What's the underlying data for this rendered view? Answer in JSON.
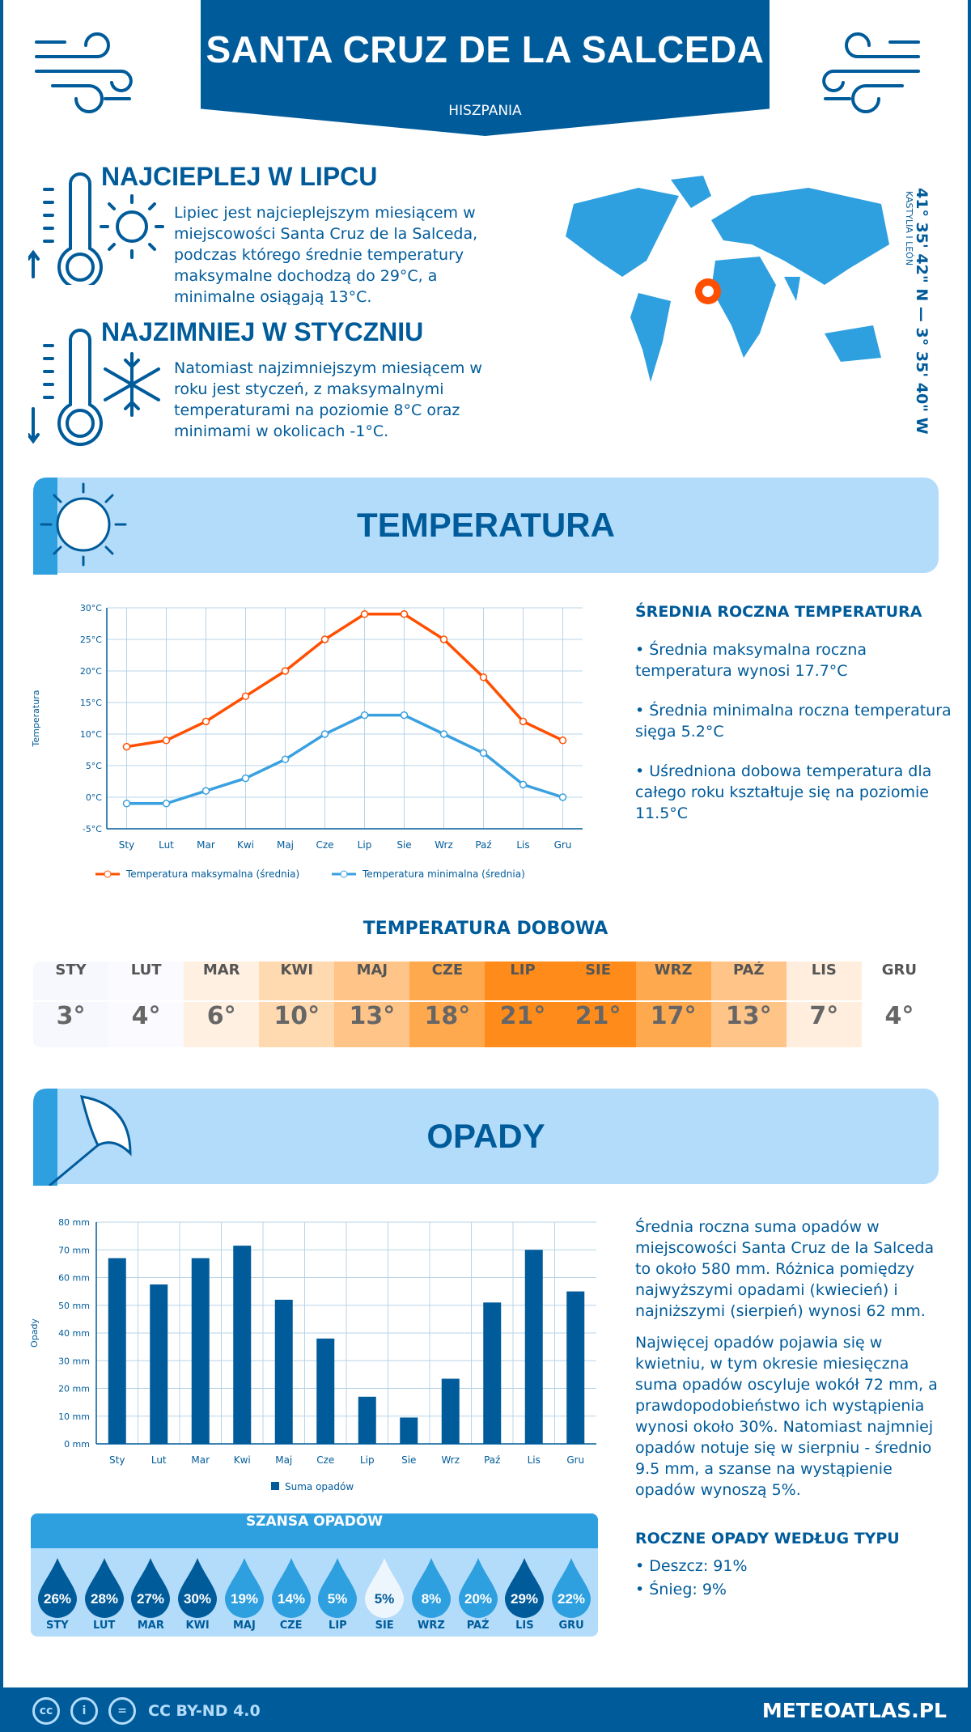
{
  "header": {
    "title": "SANTA CRUZ DE LA SALCEDA",
    "country": "HISZPANIA"
  },
  "hottest": {
    "title": "NAJCIEPLEJ W LIPCU",
    "text": "Lipiec jest najcieplejszym miesiącem w miejscowości Santa Cruz de la Salceda, podczas którego średnie temperatury maksymalne dochodzą do 29°C, a minimalne osiągają 13°C."
  },
  "coldest": {
    "title": "NAJZIMNIEJ W STYCZNIU",
    "text": "Natomiast najzimniejszym miesiącem w roku jest styczeń, z maksymalnymi temperaturami na poziomie 8°C oraz minimami w okolicach -1°C."
  },
  "location": {
    "coords": "41° 35' 42\" N — 3° 35' 40\" W",
    "region": "KASTYLIA I LEÓN",
    "marker_color": "#ff4f00"
  },
  "temperature": {
    "section_title": "TEMPERATURA",
    "summary_title": "ŚREDNIA ROCZNA TEMPERATURA",
    "bullets": [
      "• Średnia maksymalna roczna temperatura wynosi 17.7°C",
      "• Średnia minimalna roczna temperatura sięga 5.2°C",
      "• Uśredniona dobowa temperatura dla całego roku kształtuje się na poziomie 11.5°C"
    ]
  },
  "daily": {
    "title": "TEMPERATURA DOBOWA",
    "months": [
      "STY",
      "LUT",
      "MAR",
      "KWI",
      "MAJ",
      "CZE",
      "LIP",
      "SIE",
      "WRZ",
      "PAŹ",
      "LIS",
      "GRU"
    ],
    "values": [
      "3°",
      "4°",
      "6°",
      "10°",
      "13°",
      "18°",
      "21°",
      "21°",
      "17°",
      "13°",
      "7°",
      "4°"
    ],
    "colors": [
      "#f7f8fe",
      "#fbfaff",
      "#fff0e1",
      "#ffd9b0",
      "#ffc488",
      "#ffa94f",
      "#ff8c1a",
      "#ff8c1a",
      "#ffa94f",
      "#ffc488",
      "#ffeedd",
      "#ffffff"
    ]
  },
  "precip": {
    "section_title": "OPADY",
    "text1": "Średnia roczna suma opadów w miejscowości Santa Cruz de la Salceda to około 580 mm. Różnica pomiędzy najwyższymi opadami (kwiecień) i najniższymi (sierpień) wynosi 62 mm.",
    "text2": "Najwięcej opadów pojawia się w kwietniu, w tym okresie miesięczna suma opadów oscyluje wokół 72 mm, a prawdopodobieństwo ich wystąpienia wynosi około 30%. Natomiast najmniej opadów notuje się w sierpniu - średnio 9.5 mm, a szanse na wystąpienie opadów wynoszą 5%.",
    "type_title": "ROCZNE OPADY WEDŁUG TYPU",
    "types": [
      "• Deszcz: 91%",
      "• Śnieg: 9%"
    ]
  },
  "chance": {
    "title": "SZANSA OPADÓW",
    "months": [
      "STY",
      "LUT",
      "MAR",
      "KWI",
      "MAJ",
      "CZE",
      "LIP",
      "SIE",
      "WRZ",
      "PAŹ",
      "LIS",
      "GRU"
    ],
    "values": [
      "26%",
      "28%",
      "27%",
      "30%",
      "19%",
      "14%",
      "5%",
      "5%",
      "8%",
      "20%",
      "29%",
      "22%"
    ],
    "colors": [
      "#005b9a",
      "#005b9a",
      "#005b9a",
      "#005b9a",
      "#2e9fdf",
      "#2e9fdf",
      "#2e9fdf",
      "#eef6fd",
      "#2e9fdf",
      "#2e9fdf",
      "#005b9a",
      "#2e9fdf"
    ]
  },
  "footer": {
    "license": "CC BY-ND 4.0",
    "site": "METEOATLAS.PL"
  },
  "chart_data": [
    {
      "type": "line",
      "ylabel": "Temperatura",
      "ylim": [
        -5,
        30
      ],
      "yticks": [
        "-5°C",
        "0°C",
        "5°C",
        "10°C",
        "15°C",
        "20°C",
        "25°C",
        "30°C"
      ],
      "categories": [
        "Sty",
        "Lut",
        "Mar",
        "Kwi",
        "Maj",
        "Cze",
        "Lip",
        "Sie",
        "Wrz",
        "Paź",
        "Lis",
        "Gru"
      ],
      "grid": true,
      "legend": "bottom",
      "series": [
        {
          "name": "Temperatura maksymalna (średnia)",
          "color": "#ff4f00",
          "values": [
            8,
            9,
            12,
            16,
            20,
            25,
            29,
            29,
            25,
            19,
            12,
            9
          ]
        },
        {
          "name": "Temperatura minimalna (średnia)",
          "color": "#3aa0e0",
          "values": [
            -1,
            -1,
            1,
            3,
            6,
            10,
            13,
            13,
            10,
            7,
            2,
            0
          ]
        }
      ]
    },
    {
      "type": "bar",
      "ylabel": "Opady",
      "ylim": [
        0,
        80
      ],
      "yticks": [
        "0 mm",
        "10 mm",
        "20 mm",
        "30 mm",
        "40 mm",
        "50 mm",
        "60 mm",
        "70 mm",
        "80 mm"
      ],
      "categories": [
        "Sty",
        "Lut",
        "Mar",
        "Kwi",
        "Maj",
        "Cze",
        "Lip",
        "Sie",
        "Wrz",
        "Paź",
        "Lis",
        "Gru"
      ],
      "grid": true,
      "legend": "bottom",
      "series": [
        {
          "name": "Suma opadów",
          "color": "#005b9a",
          "values": [
            67,
            57.5,
            67,
            71.5,
            52,
            38,
            17,
            9.5,
            23.5,
            51,
            70,
            55
          ]
        }
      ]
    }
  ]
}
